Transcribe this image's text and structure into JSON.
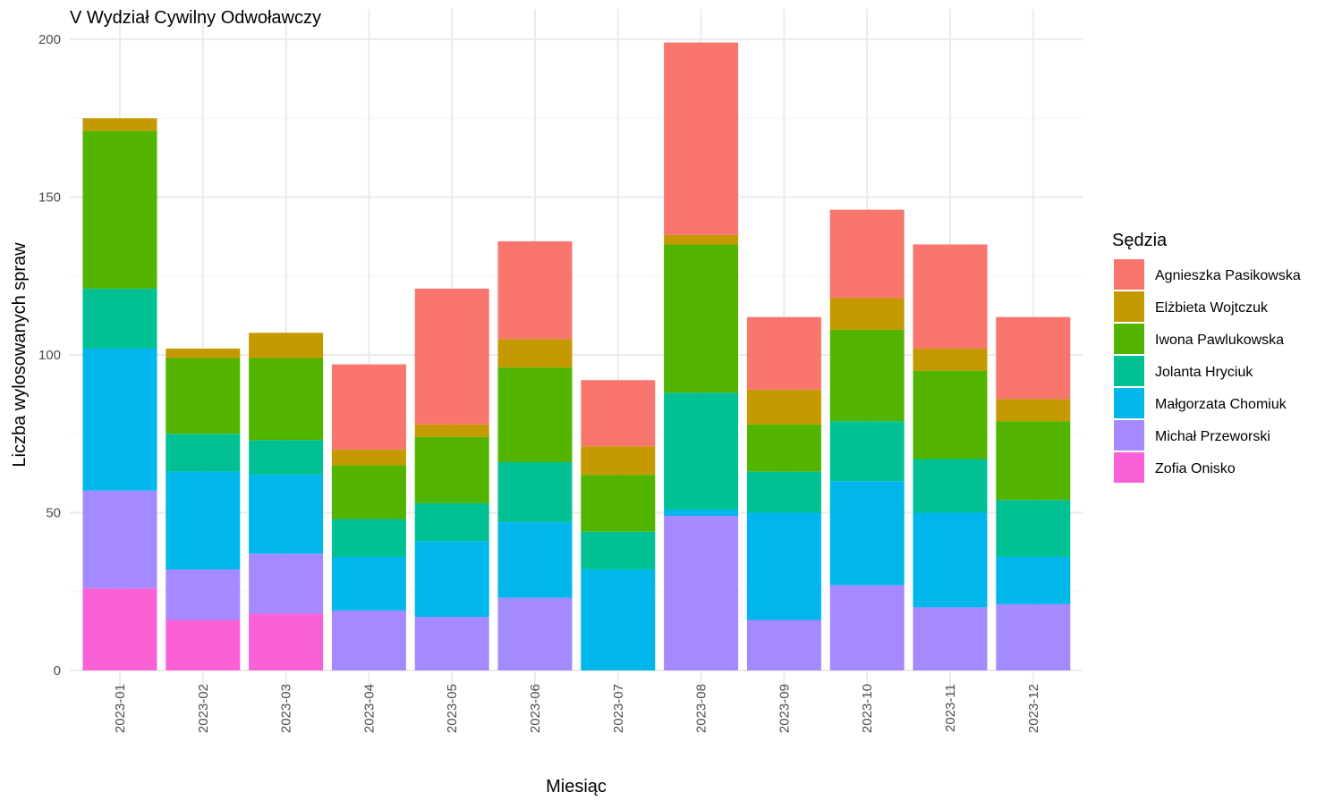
{
  "chart_data": {
    "type": "bar",
    "stacked": true,
    "title": "V Wydział Cywilny Odwoławczy",
    "xlabel": "Miesiąc",
    "ylabel": "Liczba wylosowanych spraw",
    "ylim": [
      0,
      200
    ],
    "yticks": [
      0,
      50,
      100,
      150,
      200
    ],
    "grid": true,
    "legend_title": "Sędzia",
    "legend_position": "right",
    "categories": [
      "2023-01",
      "2023-02",
      "2023-03",
      "2023-04",
      "2023-05",
      "2023-06",
      "2023-07",
      "2023-08",
      "2023-09",
      "2023-10",
      "2023-11",
      "2023-12"
    ],
    "series": [
      {
        "name": "Agnieszka Pasikowska",
        "color": "#F8766D",
        "values": [
          0,
          0,
          0,
          27,
          43,
          31,
          21,
          61,
          23,
          28,
          33,
          26
        ]
      },
      {
        "name": "Elżbieta Wojtczuk",
        "color": "#C49A00",
        "values": [
          4,
          3,
          8,
          5,
          4,
          9,
          9,
          3,
          11,
          10,
          7,
          7
        ]
      },
      {
        "name": "Iwona Pawlukowska",
        "color": "#53B400",
        "values": [
          50,
          24,
          26,
          17,
          21,
          30,
          18,
          47,
          15,
          29,
          28,
          25
        ]
      },
      {
        "name": "Jolanta Hryciuk",
        "color": "#00C094",
        "values": [
          19,
          12,
          11,
          12,
          12,
          19,
          12,
          37,
          13,
          19,
          17,
          18
        ]
      },
      {
        "name": "Małgorzata Chomiuk",
        "color": "#00B6EB",
        "values": [
          45,
          31,
          25,
          17,
          24,
          24,
          32,
          2,
          34,
          33,
          30,
          15
        ]
      },
      {
        "name": "Michał Przeworski",
        "color": "#A58AFF",
        "values": [
          31,
          16,
          19,
          19,
          17,
          23,
          0,
          49,
          16,
          27,
          20,
          21
        ]
      },
      {
        "name": "Zofia Onisko",
        "color": "#FB61D7",
        "values": [
          26,
          16,
          18,
          0,
          0,
          0,
          0,
          0,
          0,
          0,
          0,
          0
        ]
      }
    ]
  }
}
